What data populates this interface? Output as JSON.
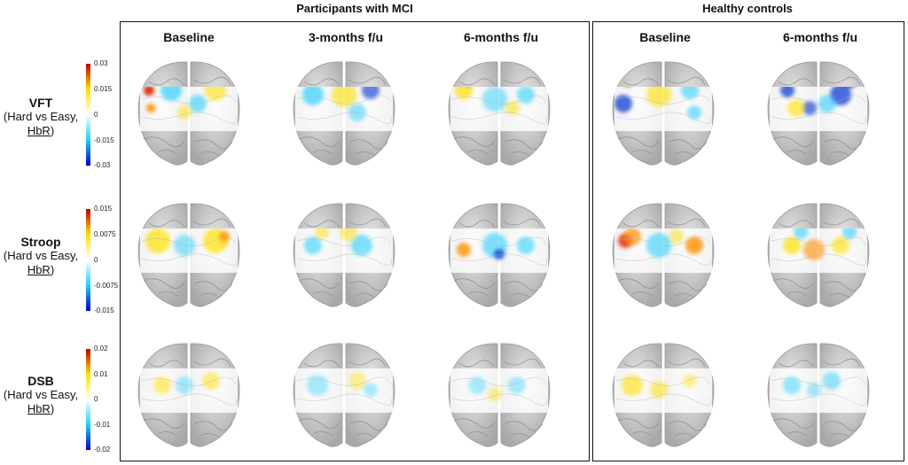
{
  "groups": {
    "mci": "Participants with MCI",
    "hc": "Healthy controls"
  },
  "columns": {
    "mci": [
      "Baseline",
      "3-months f/u",
      "6-months f/u"
    ],
    "hc": [
      "Baseline",
      "6-months f/u"
    ]
  },
  "rows": [
    {
      "task": "VFT",
      "line1": "(Hard vs Easy,",
      "hbr": "HbR",
      "close": ")",
      "scale": {
        "max": "0.03",
        "mid_hi": "0.015",
        "zero": "0",
        "mid_lo": "-0.015",
        "min": "-0.03"
      }
    },
    {
      "task": "Stroop",
      "line1": "(Hard vs Easy,",
      "hbr": "HbR",
      "close": ")",
      "scale": {
        "max": "0.015",
        "mid_hi": "0.0075",
        "zero": "0",
        "mid_lo": "-0.0075",
        "min": "-0.015"
      }
    },
    {
      "task": "DSB",
      "line1": "(Hard vs Easy,",
      "hbr": "HbR",
      "close": ")",
      "scale": {
        "max": "0.02",
        "mid_hi": "0.01",
        "zero": "0",
        "mid_lo": "-0.01",
        "min": "-0.02"
      }
    }
  ],
  "colormap": {
    "high": "#c00000",
    "warm": "#ffe000",
    "zero": "#ffffff",
    "cool": "#20d0ff",
    "low": "#0000c0"
  }
}
